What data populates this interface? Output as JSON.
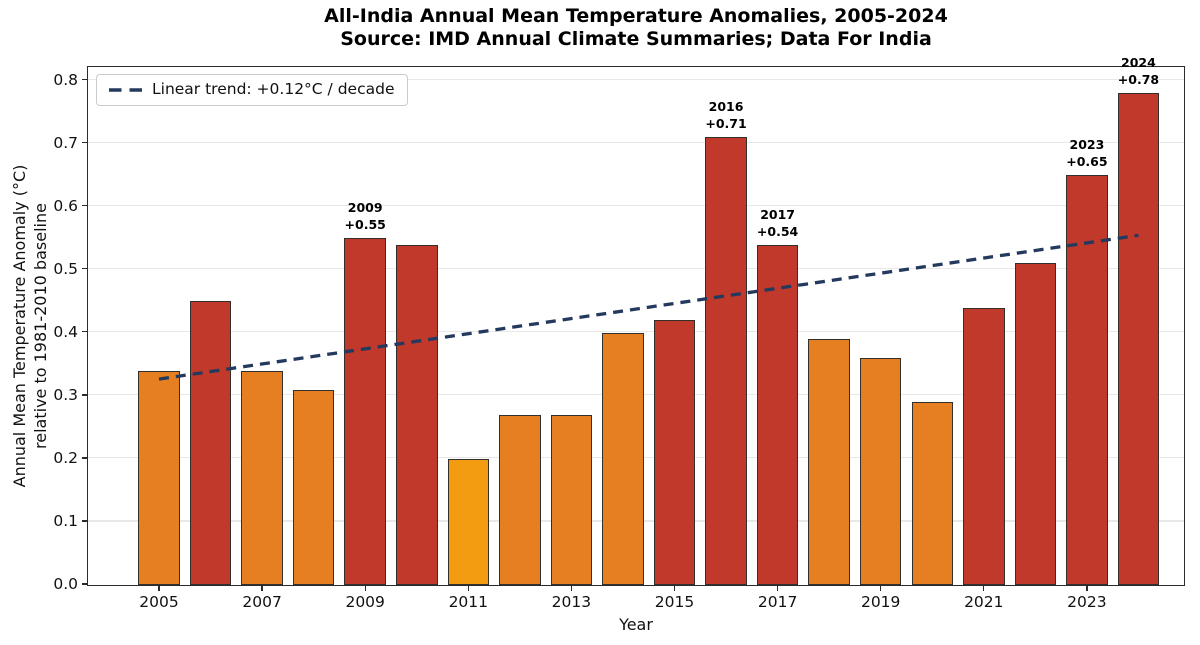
{
  "chart_data": {
    "type": "bar",
    "title": "All-India Annual Mean Temperature Anomalies, 2005-2024",
    "subtitle": "Source: IMD Annual Climate Summaries; Data For India",
    "xlabel": "Year",
    "ylabel_line1": "Annual Mean Temperature Anomaly (°C)",
    "ylabel_line2": "relative to 1981-2010 baseline",
    "ylim": [
      0,
      0.82
    ],
    "grid": true,
    "legend_position": "upper left",
    "ytick_labels": [
      "0.0",
      "0.1",
      "0.2",
      "0.3",
      "0.4",
      "0.5",
      "0.6",
      "0.7",
      "0.8"
    ],
    "xtick_labels": [
      "2005",
      "2007",
      "2009",
      "2011",
      "2013",
      "2015",
      "2017",
      "2019",
      "2021",
      "2023"
    ],
    "categories": [
      2005,
      2006,
      2007,
      2008,
      2009,
      2010,
      2011,
      2012,
      2013,
      2014,
      2015,
      2016,
      2017,
      2018,
      2019,
      2020,
      2021,
      2022,
      2023,
      2024
    ],
    "values": [
      0.34,
      0.45,
      0.34,
      0.31,
      0.55,
      0.54,
      0.2,
      0.27,
      0.27,
      0.4,
      0.42,
      0.71,
      0.54,
      0.39,
      0.36,
      0.29,
      0.44,
      0.51,
      0.65,
      0.78
    ],
    "point_color_keys": [
      "orange",
      "red",
      "orange",
      "orange",
      "red",
      "red",
      "amber",
      "orange",
      "orange",
      "orange",
      "red",
      "red",
      "red",
      "orange",
      "orange",
      "orange",
      "red",
      "red",
      "red",
      "red"
    ],
    "annotations": [
      {
        "year": 2009,
        "value_text": "+0.55"
      },
      {
        "year": 2016,
        "value_text": "+0.71"
      },
      {
        "year": 2017,
        "value_text": "+0.54"
      },
      {
        "year": 2023,
        "value_text": "+0.65"
      },
      {
        "year": 2024,
        "value_text": "+0.78"
      }
    ],
    "trend": {
      "legend_label": "Linear trend: +0.12°C / decade",
      "slope_c_per_decade": 0.12,
      "start_year": 2005,
      "end_year": 2024,
      "start_value": 0.325,
      "end_value": 0.553,
      "line_style": "dashed"
    }
  },
  "colors": {
    "bar_red": "#c0392b",
    "bar_orange": "#e67e22",
    "bar_amber": "#f39c12",
    "bar_edge": "#33302b",
    "trend_line": "#23395d",
    "grid_line": "#e8e8e8",
    "axis_spine": "#2b2b2b",
    "text": "#000000"
  }
}
